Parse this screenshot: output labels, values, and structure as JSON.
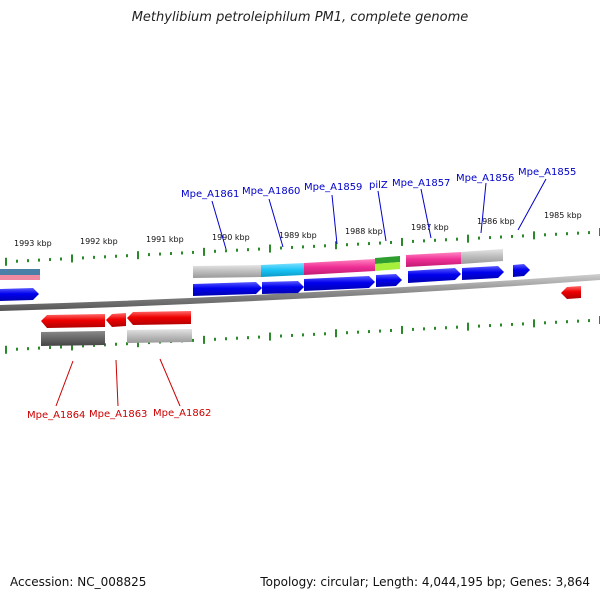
{
  "title": "Methylibium petroleiphilum PM1, complete genome",
  "footer": {
    "accession": "Accession: NC_008825",
    "stats": "Topology: circular; Length: 4,044,195 bp; Genes: 3,864"
  },
  "scale": {
    "unit": "kbp",
    "labels": [
      "1993 kbp",
      "1992 kbp",
      "1991 kbp",
      "1990 kbp",
      "1989 kbp",
      "1988 kbp",
      "1987 kbp",
      "1986 kbp",
      "1985 kbp"
    ]
  },
  "genes_forward": [
    "Mpe_A1861",
    "Mpe_A1860",
    "Mpe_A1859",
    "pilZ",
    "Mpe_A1857",
    "Mpe_A1856",
    "Mpe_A1855"
  ],
  "genes_reverse": [
    "Mpe_A1864",
    "Mpe_A1863",
    "Mpe_A1862"
  ],
  "colors": {
    "forward_gene": "#0000ee",
    "reverse_gene": "#ee0000",
    "label_forward": "#0000cc",
    "label_reverse": "#cc0000",
    "backbone": "#888888",
    "ticks": "#2a8a2a",
    "feature_gray": "#bdbdbd",
    "feature_dark_gray": "#666666",
    "feature_cyan": "#19c3f5",
    "feature_magenta": "#ef2f95",
    "feature_green": "#2e9e2e",
    "feature_lime": "#a6ef3a",
    "feature_pink_light": "#f08aa0",
    "feature_steel": "#4a7fa8"
  }
}
